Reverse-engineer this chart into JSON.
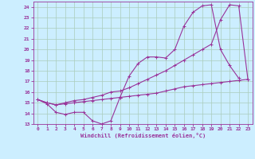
{
  "xlabel": "Windchill (Refroidissement éolien,°C)",
  "bg_color": "#cceeff",
  "grid_color": "#aaccbb",
  "line_color": "#993399",
  "xlim": [
    -0.5,
    23.5
  ],
  "ylim": [
    13,
    24.5
  ],
  "xticks": [
    0,
    1,
    2,
    3,
    4,
    5,
    6,
    7,
    8,
    9,
    10,
    11,
    12,
    13,
    14,
    15,
    16,
    17,
    18,
    19,
    20,
    21,
    22,
    23
  ],
  "yticks": [
    13,
    14,
    15,
    16,
    17,
    18,
    19,
    20,
    21,
    22,
    23,
    24
  ],
  "series1_x": [
    0,
    1,
    2,
    3,
    4,
    5,
    6,
    7,
    8,
    9,
    10,
    11,
    12,
    13,
    14,
    15,
    16,
    17,
    18,
    19,
    20,
    21,
    22
  ],
  "series1_y": [
    15.3,
    14.9,
    14.1,
    13.9,
    14.1,
    14.1,
    13.3,
    13.0,
    13.3,
    15.5,
    17.5,
    18.7,
    19.3,
    19.3,
    19.2,
    20.0,
    22.2,
    23.5,
    24.1,
    24.2,
    20.0,
    18.5,
    17.3
  ],
  "series2_x": [
    0,
    1,
    2,
    3,
    4,
    5,
    6,
    7,
    8,
    9,
    10,
    11,
    12,
    13,
    14,
    15,
    16,
    17,
    18,
    19,
    20,
    21,
    22,
    23
  ],
  "series2_y": [
    15.3,
    15.0,
    14.8,
    15.0,
    15.2,
    15.3,
    15.5,
    15.7,
    16.0,
    16.1,
    16.4,
    16.8,
    17.2,
    17.6,
    18.0,
    18.5,
    19.0,
    19.5,
    20.0,
    20.5,
    22.8,
    24.2,
    24.1,
    17.2
  ],
  "series3_x": [
    0,
    1,
    2,
    3,
    4,
    5,
    6,
    7,
    8,
    9,
    10,
    11,
    12,
    13,
    14,
    15,
    16,
    17,
    18,
    19,
    20,
    21,
    22,
    23
  ],
  "series3_y": [
    15.3,
    15.0,
    14.8,
    14.9,
    15.0,
    15.1,
    15.2,
    15.3,
    15.4,
    15.5,
    15.6,
    15.7,
    15.8,
    15.9,
    16.1,
    16.3,
    16.5,
    16.6,
    16.7,
    16.8,
    16.9,
    17.0,
    17.1,
    17.2
  ]
}
